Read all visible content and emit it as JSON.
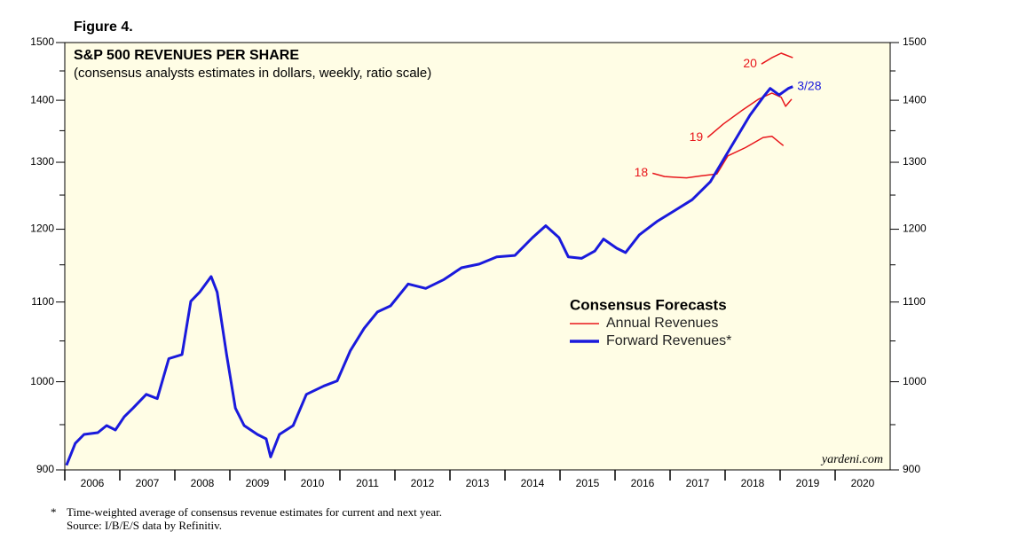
{
  "chart_data": {
    "type": "line",
    "figure_label": "Figure 4.",
    "title": "S&P 500 REVENUES PER SHARE",
    "subtitle": "(consensus analysts estimates in dollars, weekly, ratio scale)",
    "log_scale": true,
    "xlim": [
      2006,
      2021
    ],
    "xticks": [
      2006,
      2007,
      2008,
      2009,
      2010,
      2011,
      2012,
      2013,
      2014,
      2015,
      2016,
      2017,
      2018,
      2019,
      2020
    ],
    "ylim": [
      900,
      1500
    ],
    "yticks": [
      900,
      1000,
      1100,
      1200,
      1300,
      1400,
      1500
    ],
    "yminorticks": [
      950,
      1050,
      1150,
      1250,
      1350,
      1450
    ],
    "legend_title": "Consensus Forecasts",
    "series": [
      {
        "name": "Annual Revenues",
        "color": "#e8161b",
        "segments": [
          {
            "label": "18",
            "x": [
              2016.68,
              2016.9,
              2017.08,
              2017.3,
              2017.56,
              2017.85,
              2018.05,
              2018.37,
              2018.69,
              2018.85,
              2019.06
            ],
            "values": [
              1283,
              1278,
              1277,
              1276,
              1279,
              1282,
              1310,
              1323,
              1339,
              1341,
              1326
            ]
          },
          {
            "label": "19",
            "x": [
              2017.68,
              2017.97,
              2018.29,
              2018.61,
              2018.85,
              2019.02,
              2019.1,
              2019.21
            ],
            "values": [
              1339,
              1361,
              1382,
              1402,
              1412,
              1405,
              1390,
              1402
            ]
          },
          {
            "label": "20",
            "x": [
              2018.66,
              2018.85,
              2019.02,
              2019.23
            ],
            "values": [
              1462,
              1473,
              1481,
              1473
            ]
          }
        ]
      },
      {
        "name": "Forward Revenues*",
        "color": "#1a1adc",
        "end_label": "3/28",
        "x": [
          2006.03,
          2006.19,
          2006.35,
          2006.6,
          2006.76,
          2006.92,
          2007.08,
          2007.24,
          2007.48,
          2007.68,
          2007.89,
          2008.13,
          2008.29,
          2008.45,
          2008.66,
          2008.77,
          2008.94,
          2009.1,
          2009.26,
          2009.5,
          2009.66,
          2009.74,
          2009.9,
          2010.15,
          2010.39,
          2010.71,
          2010.95,
          2011.19,
          2011.44,
          2011.68,
          2011.92,
          2012.24,
          2012.56,
          2012.89,
          2013.21,
          2013.53,
          2013.85,
          2014.18,
          2014.5,
          2014.74,
          2014.98,
          2015.15,
          2015.39,
          2015.63,
          2015.79,
          2016.03,
          2016.19,
          2016.44,
          2016.76,
          2017.08,
          2017.4,
          2017.73,
          2017.97,
          2018.21,
          2018.45,
          2018.69,
          2018.82,
          2018.98,
          2019.15,
          2019.23
        ],
        "values": [
          905,
          929,
          939,
          941,
          949,
          944,
          959,
          969,
          985,
          980,
          1028,
          1033,
          1101,
          1113,
          1134,
          1113,
          1033,
          969,
          949,
          939,
          934,
          914,
          939,
          949,
          985,
          995,
          1001,
          1038,
          1066,
          1087,
          1095,
          1124,
          1118,
          1130,
          1146,
          1151,
          1161,
          1163,
          1188,
          1205,
          1188,
          1161,
          1159,
          1169,
          1186,
          1173,
          1167,
          1192,
          1211,
          1227,
          1243,
          1270,
          1304,
          1339,
          1375,
          1405,
          1420,
          1409,
          1420,
          1423
        ]
      }
    ],
    "source_mark": "yardeni.com",
    "footnote_mark": "*",
    "footnotes": [
      "Time-weighted average of consensus revenue estimates for current and next year.",
      "Source: I/B/E/S data by Refinitiv."
    ]
  }
}
